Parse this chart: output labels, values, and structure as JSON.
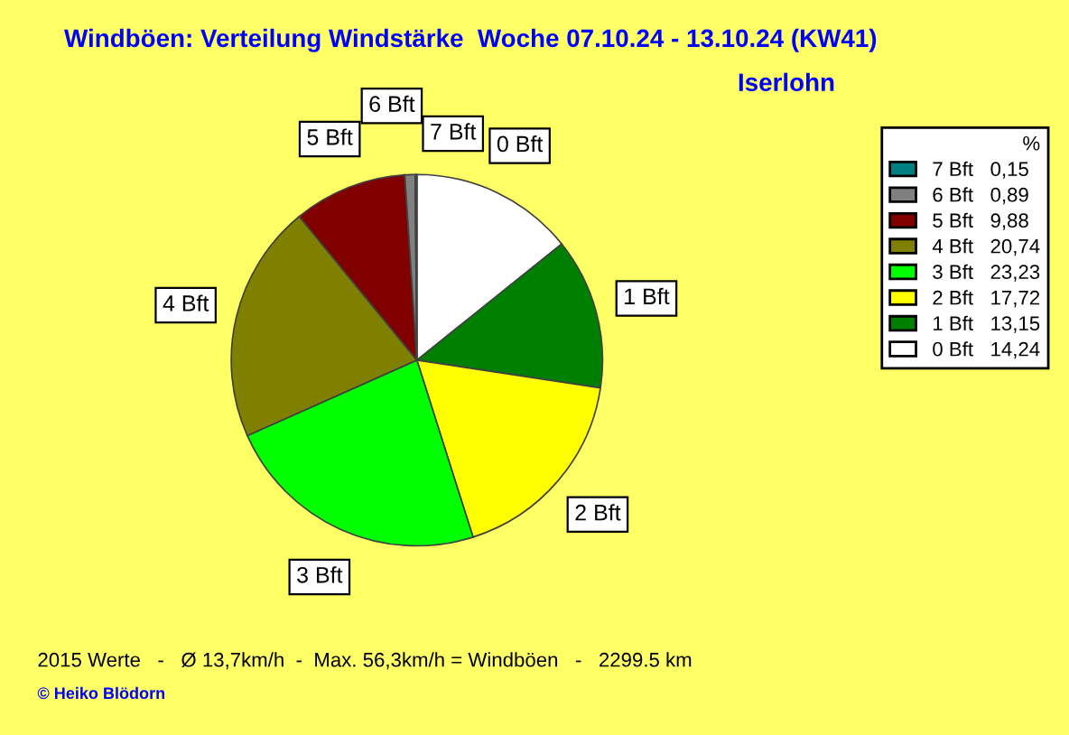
{
  "chart_data": {
    "type": "pie",
    "title": "Windböen: Verteilung Windstärke  Woche 07.10.24 - 13.10.24 (KW41)",
    "subtitle": "Iserlohn",
    "categories": [
      "0 Bft",
      "1 Bft",
      "2 Bft",
      "3 Bft",
      "4 Bft",
      "5 Bft",
      "6 Bft",
      "7 Bft"
    ],
    "values": [
      14.24,
      13.15,
      17.72,
      23.23,
      20.74,
      9.88,
      0.89,
      0.15
    ],
    "value_labels": [
      "14,24",
      "13,15",
      "17,72",
      "23,23",
      "20,74",
      "9,88",
      "0,89",
      "0,15"
    ],
    "colors": [
      "#ffffff",
      "#008000",
      "#ffff00",
      "#00ff00",
      "#808000",
      "#800000",
      "#808080",
      "#008080"
    ],
    "legend": "top right",
    "legend_title": "%",
    "annotations": [
      "2015 Werte   -   Ø 13,7km/h  -  Max. 56,3km/h = Windböen   -   2299.5 km",
      "© Heiko Blödorn"
    ]
  }
}
